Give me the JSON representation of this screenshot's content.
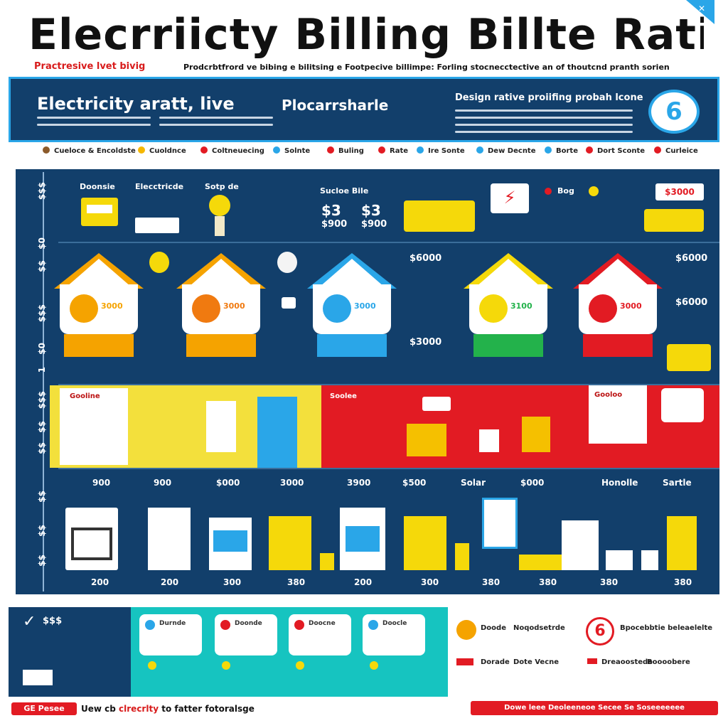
{
  "header": {
    "title": "Elecrriicty Billing Billte Ratie",
    "subtitle_red": "Practresive lvet bivig",
    "subtitle_black": "Prodcrbtfrord ve bibing e bilitsing e Footpecive billimpe: Forling stocnecctective an of thoutcnd pranth sorien",
    "corner_icon": "close-icon"
  },
  "banner": {
    "heading": "Electricity aratt, live",
    "subheading": "Plocarrsharle",
    "right_heading": "Design rative proiifing probah lcone",
    "badge": "6",
    "badge_icon": "clock-icon"
  },
  "legend": [
    {
      "label": "Cueloce & Encoldste",
      "color": "#8b5a2b"
    },
    {
      "label": "Cuoldnce",
      "color": "#f5b700"
    },
    {
      "label": "Coltneuecing",
      "color": "#e21b23"
    },
    {
      "label": "Solnte",
      "color": "#2aa6e8"
    },
    {
      "label": "Buling",
      "color": "#e21b23"
    },
    {
      "label": "Rate",
      "color": "#e21b23"
    },
    {
      "label": "Ire Sonte",
      "color": "#2aa6e8"
    },
    {
      "label": "Dew Decnte",
      "color": "#2aa6e8"
    },
    {
      "label": "Borte",
      "color": "#2aa6e8"
    },
    {
      "label": "Dort Sconte",
      "color": "#e21b23"
    },
    {
      "label": "Curleice",
      "color": "#e21b23"
    }
  ],
  "yaxis": [
    "$$$",
    "$0",
    "$$",
    "$$$",
    "$0",
    "1",
    "$$$",
    "$$",
    "$$",
    "$$",
    "$$",
    "$$"
  ],
  "top_row": {
    "label_a": "Doonsie",
    "label_b": "Elecctricde",
    "label_c": "Sotp de",
    "label_d": "Sucloe Bile",
    "price_1": "$3",
    "price_2": "$3",
    "sub_1": "$900",
    "sub_2": "$900",
    "tag_bog": "Bog",
    "tag_price": "$3000"
  },
  "houses": [
    {
      "reading": "3000",
      "color": "#f5a300",
      "meter": "#f5a300"
    },
    {
      "reading": "3000",
      "color": "#f5a300",
      "meter": "#f07a10"
    },
    {
      "reading": "3000",
      "color": "#2aa6e8",
      "meter": "#2aa6e8"
    },
    {
      "reading": "3100",
      "color": "#23b24b",
      "meter": "#f5d90a"
    },
    {
      "reading": "3000",
      "color": "#e21b23",
      "meter": "#e21b23"
    }
  ],
  "house_labels": {
    "price_top": "$6000",
    "price_mid": "$3000",
    "price_right_top": "$6000",
    "price_right_mid": "$6000"
  },
  "band": {
    "left_title": "Gooline",
    "mid_title": "Soolee",
    "right_title": "Gooloo"
  },
  "appliances_top_numbers": [
    "900",
    "900",
    "$000",
    "3000",
    "3900",
    "$500",
    "$000"
  ],
  "appliances_labels": {
    "solar": "Solar",
    "honolle": "Honolle",
    "sartle": "Sartle"
  },
  "appliances_bottom_numbers": [
    "200",
    "200",
    "300",
    "380",
    "200",
    "300",
    "380",
    "380",
    "380",
    "380"
  ],
  "footer": {
    "check_title": "$$$",
    "cards": [
      {
        "label": "Durnde",
        "color": "#2aa6e8"
      },
      {
        "label": "Doonde",
        "color": "#e21b23"
      },
      {
        "label": "Doocne",
        "color": "#e21b23"
      },
      {
        "label": "Doocle",
        "color": "#2aa6e8"
      }
    ],
    "info_rows": [
      {
        "a": "Doode",
        "b": "Noqodsetrde"
      },
      {
        "a": "Dorade",
        "b": "Dote Vecne"
      }
    ],
    "right_title": "Bpocebbtie beleaelelte",
    "right_badge": "6",
    "right_rows": [
      {
        "a": "Dreaoostede",
        "b": "Boooobere"
      }
    ],
    "left_button": "GE Pesee",
    "tagline_a": "Uew cb ",
    "tagline_hl": "clrecrlty",
    "tagline_b": " to fatter fotoralsge",
    "right_button": "Dowe leee Deoleeneoe Secee Se Soseeeeeee"
  }
}
